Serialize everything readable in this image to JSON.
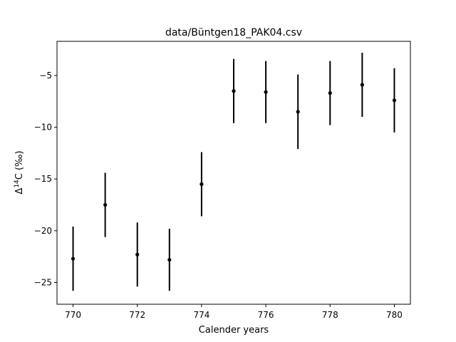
{
  "chart_data": {
    "type": "scatter",
    "title": "data/Büntgen18_PAK04.csv",
    "xlabel": "Calender years",
    "ylabel_main": "Δ",
    "ylabel_sup": "14",
    "ylabel_rest": "C (‰)",
    "xlim": [
      769.5,
      780.5
    ],
    "ylim": [
      -27.1,
      -1.7
    ],
    "xticks": [
      770,
      772,
      774,
      776,
      778,
      780
    ],
    "yticks": [
      -25,
      -20,
      -15,
      -10,
      -5
    ],
    "grid": false,
    "marker_color": "#000000",
    "series": [
      {
        "x": [
          770,
          771,
          772,
          773,
          774,
          775,
          776,
          777,
          778,
          779,
          780
        ],
        "y": [
          -22.7,
          -17.5,
          -22.3,
          -22.8,
          -15.5,
          -6.5,
          -6.6,
          -8.5,
          -6.7,
          -5.9,
          -7.4
        ],
        "yerr": [
          3.1,
          3.1,
          3.1,
          3.0,
          3.1,
          3.1,
          3.0,
          3.6,
          3.1,
          3.1,
          3.1
        ]
      }
    ]
  }
}
